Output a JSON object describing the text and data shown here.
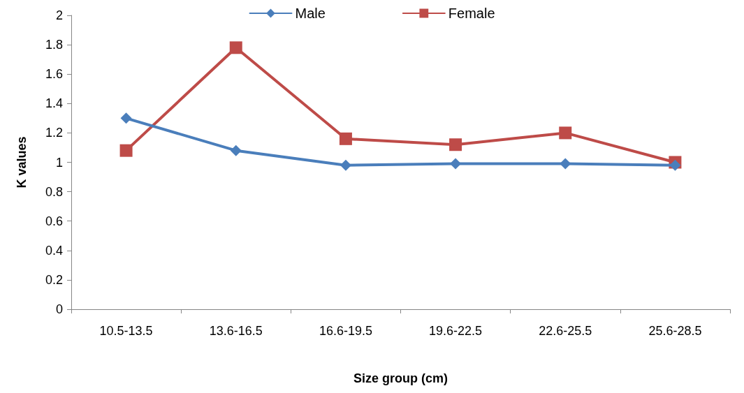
{
  "chart_data": {
    "type": "line",
    "xlabel": "Size group (cm)",
    "ylabel": "K values",
    "categories": [
      "10.5-13.5",
      "13.6-16.5",
      "16.6-19.5",
      "19.6-22.5",
      "22.6-25.5",
      "25.6-28.5"
    ],
    "series": [
      {
        "name": "Male",
        "color": "#4a7ebb",
        "marker": "diamond",
        "values": [
          1.3,
          1.08,
          0.98,
          0.99,
          0.99,
          0.98
        ]
      },
      {
        "name": "Female",
        "color": "#be4b48",
        "marker": "square",
        "values": [
          1.08,
          1.78,
          1.16,
          1.12,
          1.2,
          1.0
        ]
      }
    ],
    "ylim": [
      0,
      2
    ],
    "yticks": [
      0,
      0.2,
      0.4,
      0.6,
      0.8,
      1,
      1.2,
      1.4,
      1.6,
      1.8,
      2
    ],
    "grid": false,
    "legend": "top",
    "line_style": "solid"
  }
}
